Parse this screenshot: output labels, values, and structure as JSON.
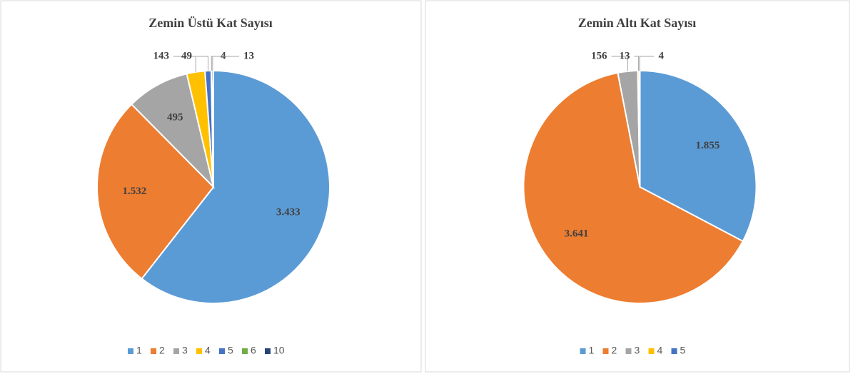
{
  "chart_data": [
    {
      "type": "pie",
      "title": "Zemin Üstü Kat Sayısı",
      "categories": [
        "1",
        "2",
        "3",
        "4",
        "5",
        "6",
        "10"
      ],
      "values": [
        3433,
        1532,
        495,
        143,
        49,
        4,
        13
      ],
      "value_labels": [
        "3.433",
        "1.532",
        "495",
        "143",
        "49",
        "4",
        "13"
      ],
      "colors": [
        "#5b9bd5",
        "#ed7d31",
        "#a5a5a5",
        "#ffc000",
        "#4472c4",
        "#70ad47",
        "#264478"
      ],
      "legend": "bottom"
    },
    {
      "type": "pie",
      "title": "Zemin Altı Kat Sayısı",
      "categories": [
        "1",
        "2",
        "3",
        "4",
        "5"
      ],
      "values": [
        1855,
        3641,
        156,
        13,
        4
      ],
      "value_labels": [
        "1.855",
        "3.641",
        "156",
        "13",
        "4"
      ],
      "colors": [
        "#5b9bd5",
        "#ed7d31",
        "#a5a5a5",
        "#ffc000",
        "#4472c4"
      ],
      "legend": "bottom"
    }
  ]
}
